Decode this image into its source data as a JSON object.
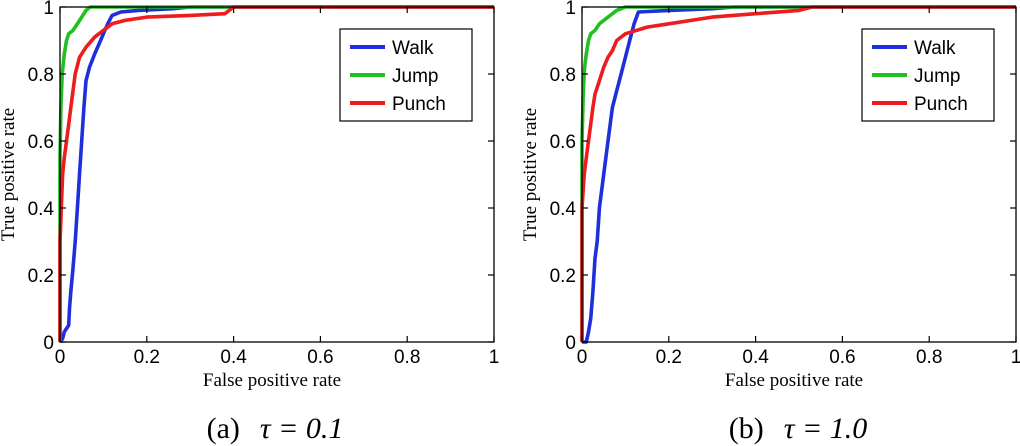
{
  "chart_data": [
    {
      "type": "line",
      "caption_label": "(a)",
      "caption_formula": "τ = 0.1",
      "xlabel": "False positive rate",
      "ylabel": "True positive rate",
      "xlim": [
        0,
        1
      ],
      "ylim": [
        0,
        1
      ],
      "xticks": [
        "0",
        "0.2",
        "0.4",
        "0.6",
        "0.8",
        "1"
      ],
      "yticks": [
        "0",
        "0.2",
        "0.4",
        "0.6",
        "0.8",
        "1"
      ],
      "grid": false,
      "legend_position": "top-right",
      "series": [
        {
          "name": "Walk",
          "color": "#1f2fdc",
          "points": [
            [
              0,
              0
            ],
            [
              0.006,
              0.01
            ],
            [
              0.01,
              0.03
            ],
            [
              0.02,
              0.05
            ],
            [
              0.022,
              0.1
            ],
            [
              0.025,
              0.15
            ],
            [
              0.03,
              0.22
            ],
            [
              0.035,
              0.3
            ],
            [
              0.04,
              0.4
            ],
            [
              0.045,
              0.5
            ],
            [
              0.05,
              0.6
            ],
            [
              0.055,
              0.7
            ],
            [
              0.06,
              0.78
            ],
            [
              0.068,
              0.82
            ],
            [
              0.08,
              0.86
            ],
            [
              0.09,
              0.89
            ],
            [
              0.1,
              0.92
            ],
            [
              0.11,
              0.95
            ],
            [
              0.12,
              0.975
            ],
            [
              0.14,
              0.985
            ],
            [
              0.18,
              0.99
            ],
            [
              0.26,
              0.995
            ],
            [
              0.3,
              1
            ],
            [
              1,
              1
            ]
          ]
        },
        {
          "name": "Jump",
          "color": "#20c020",
          "points": [
            [
              0,
              0
            ],
            [
              0,
              0.55
            ],
            [
              0.002,
              0.7
            ],
            [
              0.005,
              0.8
            ],
            [
              0.01,
              0.86
            ],
            [
              0.015,
              0.9
            ],
            [
              0.02,
              0.92
            ],
            [
              0.03,
              0.93
            ],
            [
              0.04,
              0.95
            ],
            [
              0.05,
              0.97
            ],
            [
              0.06,
              0.99
            ],
            [
              0.07,
              1
            ],
            [
              1,
              1
            ]
          ]
        },
        {
          "name": "Punch",
          "color": "#ee1c1c",
          "points": [
            [
              0,
              0
            ],
            [
              0,
              0.3
            ],
            [
              0.003,
              0.4
            ],
            [
              0.006,
              0.5
            ],
            [
              0.01,
              0.55
            ],
            [
              0.015,
              0.6
            ],
            [
              0.02,
              0.65
            ],
            [
              0.025,
              0.7
            ],
            [
              0.03,
              0.75
            ],
            [
              0.035,
              0.8
            ],
            [
              0.045,
              0.85
            ],
            [
              0.06,
              0.88
            ],
            [
              0.08,
              0.91
            ],
            [
              0.1,
              0.93
            ],
            [
              0.12,
              0.95
            ],
            [
              0.15,
              0.96
            ],
            [
              0.2,
              0.97
            ],
            [
              0.3,
              0.975
            ],
            [
              0.38,
              0.98
            ],
            [
              0.4,
              1
            ],
            [
              1,
              1
            ]
          ]
        }
      ]
    },
    {
      "type": "line",
      "caption_label": "(b)",
      "caption_formula": "τ = 1.0",
      "xlabel": "False positive rate",
      "ylabel": "True positive rate",
      "xlim": [
        0,
        1
      ],
      "ylim": [
        0,
        1
      ],
      "xticks": [
        "0",
        "0.2",
        "0.4",
        "0.6",
        "0.8",
        "1"
      ],
      "yticks": [
        "0",
        "0.2",
        "0.4",
        "0.6",
        "0.8",
        "1"
      ],
      "grid": false,
      "legend_position": "top-right",
      "series": [
        {
          "name": "Walk",
          "color": "#1f2fdc",
          "points": [
            [
              0,
              0
            ],
            [
              0.01,
              0
            ],
            [
              0.015,
              0.03
            ],
            [
              0.02,
              0.07
            ],
            [
              0.025,
              0.15
            ],
            [
              0.03,
              0.25
            ],
            [
              0.035,
              0.3
            ],
            [
              0.04,
              0.4
            ],
            [
              0.05,
              0.5
            ],
            [
              0.06,
              0.6
            ],
            [
              0.07,
              0.7
            ],
            [
              0.08,
              0.75
            ],
            [
              0.09,
              0.8
            ],
            [
              0.1,
              0.85
            ],
            [
              0.11,
              0.9
            ],
            [
              0.12,
              0.95
            ],
            [
              0.13,
              0.985
            ],
            [
              0.2,
              0.99
            ],
            [
              0.3,
              0.995
            ],
            [
              0.35,
              1
            ],
            [
              1,
              1
            ]
          ]
        },
        {
          "name": "Jump",
          "color": "#20c020",
          "points": [
            [
              0,
              0
            ],
            [
              0,
              0.6
            ],
            [
              0.003,
              0.75
            ],
            [
              0.006,
              0.82
            ],
            [
              0.01,
              0.86
            ],
            [
              0.015,
              0.9
            ],
            [
              0.02,
              0.92
            ],
            [
              0.03,
              0.93
            ],
            [
              0.04,
              0.95
            ],
            [
              0.06,
              0.97
            ],
            [
              0.08,
              0.99
            ],
            [
              0.1,
              1
            ],
            [
              1,
              1
            ]
          ]
        },
        {
          "name": "Punch",
          "color": "#ee1c1c",
          "points": [
            [
              0,
              0
            ],
            [
              0,
              0.4
            ],
            [
              0.005,
              0.5
            ],
            [
              0.01,
              0.55
            ],
            [
              0.015,
              0.6
            ],
            [
              0.02,
              0.65
            ],
            [
              0.025,
              0.7
            ],
            [
              0.03,
              0.74
            ],
            [
              0.04,
              0.78
            ],
            [
              0.05,
              0.82
            ],
            [
              0.06,
              0.85
            ],
            [
              0.07,
              0.87
            ],
            [
              0.08,
              0.9
            ],
            [
              0.1,
              0.92
            ],
            [
              0.15,
              0.94
            ],
            [
              0.2,
              0.95
            ],
            [
              0.3,
              0.97
            ],
            [
              0.4,
              0.98
            ],
            [
              0.5,
              0.99
            ],
            [
              0.53,
              1
            ],
            [
              1,
              1
            ]
          ]
        }
      ]
    }
  ]
}
